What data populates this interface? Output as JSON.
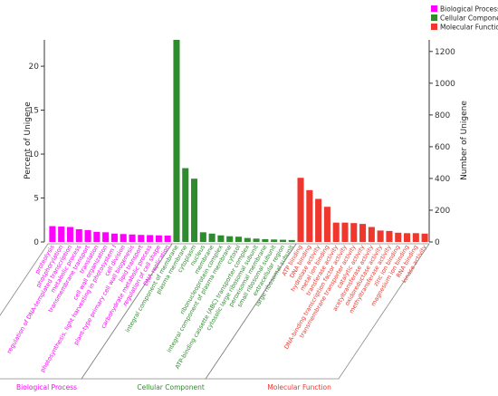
{
  "chart_data": {
    "type": "bar",
    "ylabel_left": "Percent of Unigene",
    "ylabel_right": "Number of Unigene",
    "left_ticks": [
      "0",
      "5",
      "10",
      "15",
      "20"
    ],
    "right_ticks": [
      "0",
      "200",
      "400",
      "600",
      "800",
      "1000",
      "1200"
    ],
    "ylim_left": [
      0,
      23
    ],
    "ylim_right": [
      0,
      1273
    ],
    "grid": false,
    "legend_position": "top-right",
    "colors": {
      "Biological Process": "#ff00ff",
      "Cellular Component": "#2e8b2e",
      "Molecular Function": "#f0372d"
    },
    "legend": [
      "Biological Process",
      "Cellular Component",
      "Molecular Function"
    ],
    "group_labels": [
      "Biological Process",
      "Cellular Component",
      "Molecular Function"
    ],
    "categories": [
      {
        "label": "proteolysis",
        "group": "Biological Process",
        "value": 1.8
      },
      {
        "label": "phosphorylation",
        "group": "Biological Process",
        "value": 1.75
      },
      {
        "label": "regulation of DNA-templated transcription",
        "group": "Biological Process",
        "value": 1.7
      },
      {
        "label": "metabolic process",
        "group": "Biological Process",
        "value": 1.45
      },
      {
        "label": "transmembrane transport",
        "group": "Biological Process",
        "value": 1.35
      },
      {
        "label": "translation",
        "group": "Biological Process",
        "value": 1.15
      },
      {
        "label": "cell wall organization",
        "group": "Biological Process",
        "value": 1.1
      },
      {
        "label": "photosynthesis, light harvesting in photosystem I",
        "group": "Biological Process",
        "value": 0.95
      },
      {
        "label": "cell division",
        "group": "Biological Process",
        "value": 0.9
      },
      {
        "label": "plant-type primary cell wall biogenesis",
        "group": "Biological Process",
        "value": 0.85
      },
      {
        "label": "lipid transport",
        "group": "Biological Process",
        "value": 0.8
      },
      {
        "label": "carbohydrate metabolic process",
        "group": "Biological Process",
        "value": 0.78
      },
      {
        "label": "regulation of cell shape",
        "group": "Biological Process",
        "value": 0.75
      },
      {
        "label": "DNA replication",
        "group": "Biological Process",
        "value": 0.72
      },
      {
        "label": "integral component of membrane",
        "group": "Cellular Component",
        "value": 23.0
      },
      {
        "label": "plasma membrane",
        "group": "Cellular Component",
        "value": 8.4
      },
      {
        "label": "cytoplasm",
        "group": "Cellular Component",
        "value": 7.2
      },
      {
        "label": "nucleus",
        "group": "Cellular Component",
        "value": 1.1
      },
      {
        "label": "membrane",
        "group": "Cellular Component",
        "value": 0.95
      },
      {
        "label": "ribonucleoprotein complex",
        "group": "Cellular Component",
        "value": 0.75
      },
      {
        "label": "integral component of plasma membrane",
        "group": "Cellular Component",
        "value": 0.65
      },
      {
        "label": "cytosol",
        "group": "Cellular Component",
        "value": 0.6
      },
      {
        "label": "ATP-binding cassette (ABC) transporter complex",
        "group": "Cellular Component",
        "value": 0.45
      },
      {
        "label": "cytosolic large ribosomal subunit",
        "group": "Cellular Component",
        "value": 0.38
      },
      {
        "label": "peroxisomal membrane",
        "group": "Cellular Component",
        "value": 0.32
      },
      {
        "label": "small ribosomal subunit",
        "group": "Cellular Component",
        "value": 0.28
      },
      {
        "label": "extracellular region",
        "group": "Cellular Component",
        "value": 0.25
      },
      {
        "label": "large ribosomal subunit",
        "group": "Cellular Component",
        "value": 0.22
      },
      {
        "label": "ATP binding",
        "group": "Molecular Function",
        "value": 7.3
      },
      {
        "label": "DNA binding",
        "group": "Molecular Function",
        "value": 5.9
      },
      {
        "label": "hydrolase activity",
        "group": "Molecular Function",
        "value": 4.9
      },
      {
        "label": "metal ion binding",
        "group": "Molecular Function",
        "value": 4.0
      },
      {
        "label": "transferase activity",
        "group": "Molecular Function",
        "value": 2.2
      },
      {
        "label": "DNA-binding transcription factor activity",
        "group": "Molecular Function",
        "value": 2.2
      },
      {
        "label": "transmembrane transporter activity",
        "group": "Molecular Function",
        "value": 2.15
      },
      {
        "label": "catalytic activity",
        "group": "Molecular Function",
        "value": 2.05
      },
      {
        "label": "acetyltransferase activity",
        "group": "Molecular Function",
        "value": 1.7
      },
      {
        "label": "oxidoreductase activity",
        "group": "Molecular Function",
        "value": 1.3
      },
      {
        "label": "methyltransferase activity",
        "group": "Molecular Function",
        "value": 1.25
      },
      {
        "label": "zinc ion binding",
        "group": "Molecular Function",
        "value": 1.05
      },
      {
        "label": "magnesium ion binding",
        "group": "Molecular Function",
        "value": 1.0
      },
      {
        "label": "RNA binding",
        "group": "Molecular Function",
        "value": 1.0
      },
      {
        "label": "kinase activity",
        "group": "Molecular Function",
        "value": 0.95
      }
    ]
  }
}
